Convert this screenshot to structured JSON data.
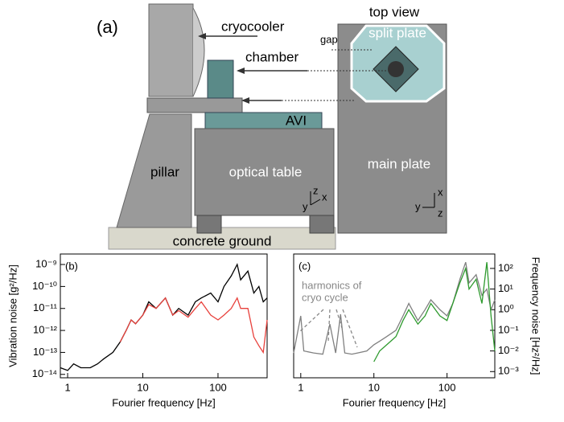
{
  "diagram": {
    "panel_label": "(a)",
    "labels": {
      "cryocooler": "cryocooler",
      "chamber": "chamber",
      "top_view": "top view",
      "gap": "gap",
      "split_plate": "split plate",
      "avi": "AVI",
      "pillar": "pillar",
      "optical_table": "optical table",
      "main_plate": "main plate",
      "ground": "concrete ground"
    },
    "axes_side": [
      "z",
      "x",
      "y"
    ],
    "axes_top": [
      "x",
      "y",
      "z"
    ]
  },
  "chart_data": [
    {
      "type": "line",
      "panel_label": "(b)",
      "xlabel": "Fourier frequency [Hz]",
      "ylabel": "Vibration noise [g²/Hz]",
      "xscale": "log",
      "yscale": "log",
      "yaxis_side": "left",
      "xlim": [
        0.8,
        450
      ],
      "ylim": [
        7e-15,
        3e-09
      ],
      "xticks": [
        1,
        10,
        100
      ],
      "yticks": [
        {
          "value": 1e-14,
          "label": "10⁻¹⁴"
        },
        {
          "value": 1e-13,
          "label": "10⁻¹³"
        },
        {
          "value": 1e-12,
          "label": "10⁻¹²"
        },
        {
          "value": 1e-11,
          "label": "10⁻¹¹"
        },
        {
          "value": 1e-10,
          "label": "10⁻¹⁰"
        },
        {
          "value": 1e-09,
          "label": "10⁻⁹"
        }
      ],
      "series": [
        {
          "color": "#000000",
          "x": [
            0.8,
            1,
            1.2,
            1.5,
            2,
            2.5,
            3,
            4,
            5,
            6,
            7,
            8,
            10,
            12,
            15,
            20,
            25,
            30,
            40,
            50,
            60,
            80,
            100,
            120,
            150,
            180,
            200,
            250,
            300,
            350,
            400,
            450
          ],
          "values": [
            2e-14,
            1.5e-14,
            3e-14,
            2e-14,
            2e-14,
            3e-14,
            5e-14,
            1e-13,
            3e-13,
            1e-12,
            3e-12,
            2e-12,
            5e-12,
            2e-11,
            1e-11,
            3e-11,
            5e-12,
            1e-11,
            5e-12,
            2e-11,
            3e-11,
            5e-11,
            2e-11,
            1e-10,
            3e-10,
            1e-09,
            2e-10,
            5e-10,
            5e-11,
            1e-10,
            2e-11,
            3e-11
          ]
        },
        {
          "color": "#e8413c",
          "x": [
            5,
            6,
            7,
            8,
            10,
            12,
            15,
            20,
            25,
            30,
            40,
            50,
            60,
            80,
            100,
            120,
            150,
            180,
            200,
            250,
            300,
            350,
            400,
            450
          ],
          "values": [
            3e-13,
            1e-12,
            3e-12,
            2e-12,
            5e-12,
            1.5e-11,
            1e-11,
            3e-11,
            5e-12,
            8e-12,
            4e-12,
            1e-11,
            2e-11,
            5e-12,
            3e-12,
            5e-12,
            1e-11,
            3e-11,
            1e-11,
            1e-11,
            5e-13,
            2e-13,
            1e-13,
            3e-12
          ]
        }
      ]
    },
    {
      "type": "line",
      "panel_label": "(c)",
      "xlabel": "Fourier frequency [Hz]",
      "ylabel": "Frequency noise [Hz²/Hz]",
      "xscale": "log",
      "yscale": "log",
      "yaxis_side": "right",
      "annotation": [
        "harmonics of",
        "cryo cycle"
      ],
      "xlim": [
        0.8,
        450
      ],
      "ylim": [
        0.0005,
        500
      ],
      "xticks": [
        1,
        10,
        100
      ],
      "yticks": [
        {
          "value": 0.001,
          "label": "10⁻³"
        },
        {
          "value": 0.01,
          "label": "10⁻²"
        },
        {
          "value": 0.1,
          "label": "10⁻¹"
        },
        {
          "value": 1,
          "label": "10⁰"
        },
        {
          "value": 10,
          "label": "10¹"
        },
        {
          "value": 100,
          "label": "10²"
        }
      ],
      "series": [
        {
          "color": "#808080",
          "x": [
            0.8,
            1,
            1.1,
            1.5,
            2,
            2.5,
            3,
            3.5,
            4,
            5,
            6,
            8,
            10,
            12,
            15,
            20,
            25,
            30,
            40,
            50,
            60,
            80,
            100,
            120,
            150,
            180,
            200,
            250,
            300,
            350,
            400,
            450
          ],
          "values": [
            0.008,
            0.5,
            0.01,
            0.008,
            0.007,
            0.2,
            0.008,
            0.6,
            0.008,
            0.007,
            0.008,
            0.01,
            0.02,
            0.03,
            0.05,
            0.1,
            0.5,
            2,
            0.3,
            1,
            3,
            1,
            0.5,
            2,
            30,
            200,
            20,
            50,
            5,
            10,
            1,
            3
          ]
        },
        {
          "color": "#2e9a2e",
          "x": [
            10,
            12,
            15,
            20,
            25,
            30,
            40,
            50,
            60,
            80,
            100,
            120,
            150,
            180,
            200,
            250,
            300,
            350,
            400,
            450
          ],
          "values": [
            0.003,
            0.01,
            0.02,
            0.05,
            0.3,
            1,
            0.2,
            0.5,
            2,
            0.5,
            0.3,
            2,
            20,
            100,
            10,
            30,
            2,
            200,
            0.5,
            0.01
          ]
        }
      ]
    }
  ]
}
